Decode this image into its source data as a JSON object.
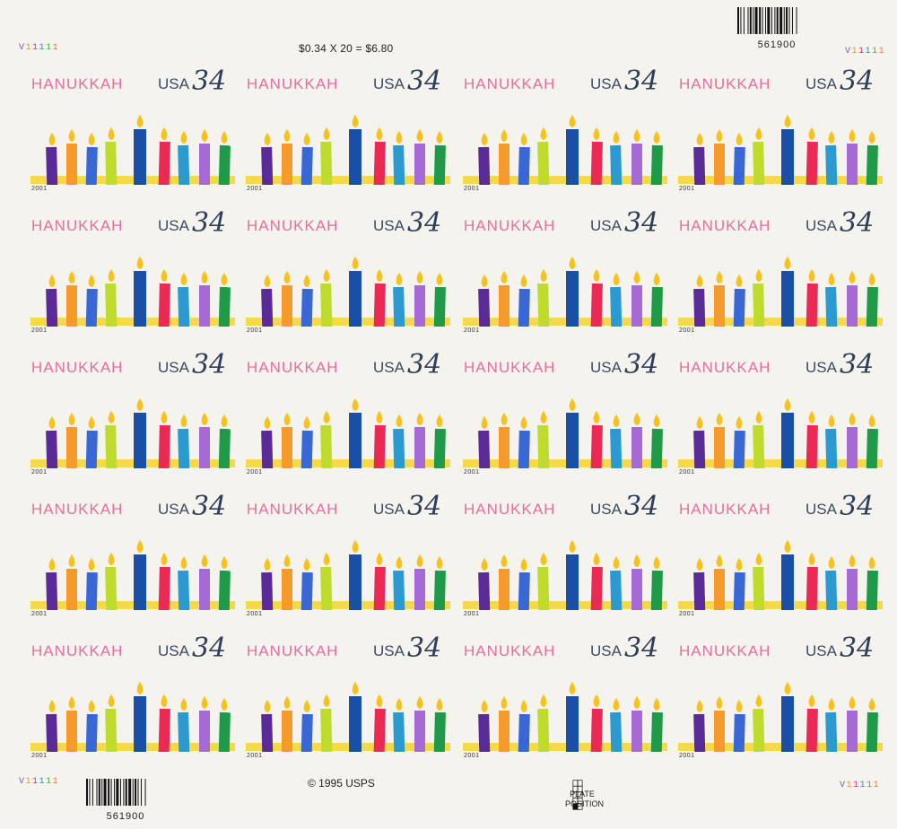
{
  "sheet": {
    "price_text": "$0.34 X 20 = $6.80",
    "copyright_text": "© 1995 USPS",
    "plate_position_label": [
      "PLATE",
      "POSITION"
    ],
    "plate_numbers": "V11111",
    "barcode_number": "561900"
  },
  "stamp": {
    "title": "HANUKKAH",
    "country": "USA",
    "denomination": "34",
    "year": "2001",
    "rows": 5,
    "columns": 4
  },
  "colors": {
    "background": "#f4f3ee",
    "title_pink": "#e26fa0",
    "usa_navy": "#2f3f5a",
    "menorah_base": "#f6d94a",
    "flame": "#f8c21e",
    "shamash_holder": "#d6348a",
    "candles": [
      "#5a2a96",
      "#f49b2b",
      "#3a67d6",
      "#bedb2e",
      "#1a4fa8",
      "#ea2a55",
      "#2a9ad0",
      "#a66ad6",
      "#1e9a48"
    ]
  },
  "icons": {
    "candle": "candle-icon",
    "flame": "flame-icon",
    "barcode": "barcode-icon",
    "plate_grid": "plate-grid-icon"
  }
}
